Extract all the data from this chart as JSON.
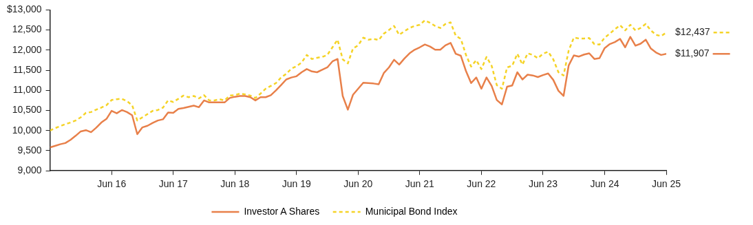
{
  "chart_data": {
    "type": "line",
    "x": [
      "2015-06",
      "2015-07",
      "2015-08",
      "2015-09",
      "2015-10",
      "2015-11",
      "2015-12",
      "2016-01",
      "2016-02",
      "2016-03",
      "2016-04",
      "2016-05",
      "2016-06",
      "2016-07",
      "2016-08",
      "2016-09",
      "2016-10",
      "2016-11",
      "2016-12",
      "2017-01",
      "2017-02",
      "2017-03",
      "2017-04",
      "2017-05",
      "2017-06",
      "2017-07",
      "2017-08",
      "2017-09",
      "2017-10",
      "2017-11",
      "2017-12",
      "2018-01",
      "2018-02",
      "2018-03",
      "2018-04",
      "2018-05",
      "2018-06",
      "2018-07",
      "2018-08",
      "2018-09",
      "2018-10",
      "2018-11",
      "2018-12",
      "2019-01",
      "2019-02",
      "2019-03",
      "2019-04",
      "2019-05",
      "2019-06",
      "2019-07",
      "2019-08",
      "2019-09",
      "2019-10",
      "2019-11",
      "2019-12",
      "2020-01",
      "2020-02",
      "2020-03",
      "2020-04",
      "2020-05",
      "2020-06",
      "2020-07",
      "2020-08",
      "2020-09",
      "2020-10",
      "2020-11",
      "2020-12",
      "2021-01",
      "2021-02",
      "2021-03",
      "2021-04",
      "2021-05",
      "2021-06",
      "2021-07",
      "2021-08",
      "2021-09",
      "2021-10",
      "2021-11",
      "2021-12",
      "2022-01",
      "2022-02",
      "2022-03",
      "2022-04",
      "2022-05",
      "2022-06",
      "2022-07",
      "2022-08",
      "2022-09",
      "2022-10",
      "2022-11",
      "2022-12",
      "2023-01",
      "2023-02",
      "2023-03",
      "2023-04",
      "2023-05",
      "2023-06",
      "2023-07",
      "2023-08",
      "2023-09",
      "2023-10",
      "2023-11",
      "2023-12",
      "2024-01",
      "2024-02",
      "2024-03",
      "2024-04",
      "2024-05",
      "2024-06",
      "2024-07",
      "2024-08",
      "2024-09",
      "2024-10",
      "2024-11",
      "2024-12",
      "2025-01",
      "2025-02",
      "2025-03",
      "2025-04",
      "2025-05",
      "2025-06"
    ],
    "series": [
      {
        "name": "Investor A Shares",
        "color": "#e8804a",
        "line_style": "solid",
        "values": [
          9580,
          9620,
          9660,
          9690,
          9770,
          9870,
          9980,
          10010,
          9960,
          10070,
          10200,
          10290,
          10490,
          10430,
          10510,
          10460,
          10380,
          9910,
          10080,
          10120,
          10190,
          10250,
          10280,
          10450,
          10440,
          10540,
          10560,
          10590,
          10620,
          10580,
          10750,
          10700,
          10700,
          10700,
          10700,
          10810,
          10840,
          10860,
          10860,
          10830,
          10750,
          10830,
          10830,
          10880,
          11000,
          11130,
          11270,
          11320,
          11350,
          11450,
          11530,
          11470,
          11450,
          11510,
          11570,
          11720,
          11780,
          10860,
          10520,
          10890,
          11040,
          11190,
          11180,
          11170,
          11150,
          11430,
          11570,
          11760,
          11640,
          11790,
          11920,
          12010,
          12070,
          12140,
          12090,
          12010,
          12010,
          12120,
          12180,
          11910,
          11860,
          11480,
          11180,
          11320,
          11040,
          11320,
          11110,
          10760,
          10650,
          11090,
          11120,
          11450,
          11270,
          11390,
          11370,
          11330,
          11380,
          11420,
          11260,
          10990,
          10860,
          11620,
          11870,
          11840,
          11890,
          11920,
          11780,
          11800,
          12050,
          12150,
          12200,
          12280,
          12070,
          12330,
          12110,
          12160,
          12260,
          12040,
          11940,
          11880,
          11907
        ]
      },
      {
        "name": "Municipal Bond Index",
        "color": "#f5d327",
        "line_style": "dashed",
        "values": [
          10000,
          10060,
          10110,
          10160,
          10200,
          10250,
          10330,
          10440,
          10460,
          10520,
          10570,
          10630,
          10760,
          10780,
          10790,
          10730,
          10630,
          10250,
          10330,
          10410,
          10490,
          10510,
          10570,
          10750,
          10710,
          10790,
          10870,
          10830,
          10860,
          10800,
          10880,
          10750,
          10750,
          10780,
          10750,
          10870,
          10880,
          10920,
          10900,
          10870,
          10810,
          10920,
          11040,
          11110,
          11180,
          11320,
          11410,
          11540,
          11600,
          11690,
          11880,
          11780,
          11810,
          11830,
          11880,
          12070,
          12260,
          11770,
          11670,
          12040,
          12120,
          12310,
          12260,
          12280,
          12250,
          12410,
          12500,
          12600,
          12380,
          12470,
          12550,
          12600,
          12630,
          12740,
          12680,
          12600,
          12550,
          12650,
          12690,
          12360,
          12280,
          11880,
          11590,
          11750,
          11530,
          11830,
          11610,
          11130,
          11040,
          11570,
          11610,
          11910,
          11640,
          11920,
          11880,
          11800,
          11910,
          11960,
          11770,
          11450,
          11370,
          11990,
          12310,
          12290,
          12290,
          12300,
          12150,
          12140,
          12310,
          12410,
          12520,
          12620,
          12490,
          12630,
          12490,
          12550,
          12650,
          12490,
          12380,
          12350,
          12437
        ]
      }
    ],
    "xlim": [
      "2015-06",
      "2025-06"
    ],
    "xticks": [
      {
        "value": "2016-06",
        "label": "Jun 16"
      },
      {
        "value": "2017-06",
        "label": "Jun 17"
      },
      {
        "value": "2018-06",
        "label": "Jun 18"
      },
      {
        "value": "2019-06",
        "label": "Jun 19"
      },
      {
        "value": "2020-06",
        "label": "Jun 20"
      },
      {
        "value": "2021-06",
        "label": "Jun 21"
      },
      {
        "value": "2022-06",
        "label": "Jun 22"
      },
      {
        "value": "2023-06",
        "label": "Jun 23"
      },
      {
        "value": "2024-06",
        "label": "Jun 24"
      },
      {
        "value": "2025-06",
        "label": "Jun 25"
      }
    ],
    "ylim": [
      9000,
      13000
    ],
    "yticks": [
      {
        "value": 9000,
        "label": "9,000"
      },
      {
        "value": 9500,
        "label": "9,500"
      },
      {
        "value": 10000,
        "label": "10,000"
      },
      {
        "value": 10500,
        "label": "10,500"
      },
      {
        "value": 11000,
        "label": "11,000"
      },
      {
        "value": 11500,
        "label": "11,500"
      },
      {
        "value": 12000,
        "label": "12,000"
      },
      {
        "value": 12500,
        "label": "12,500"
      },
      {
        "value": 13000,
        "label": "$13,000"
      }
    ],
    "annotations": [
      {
        "text": "$12,437",
        "x": "2025-06",
        "y": 12437
      },
      {
        "text": "$11,907",
        "x": "2025-06",
        "y": 11907
      }
    ],
    "grid": false,
    "legend": "bottom",
    "marker": "none"
  }
}
